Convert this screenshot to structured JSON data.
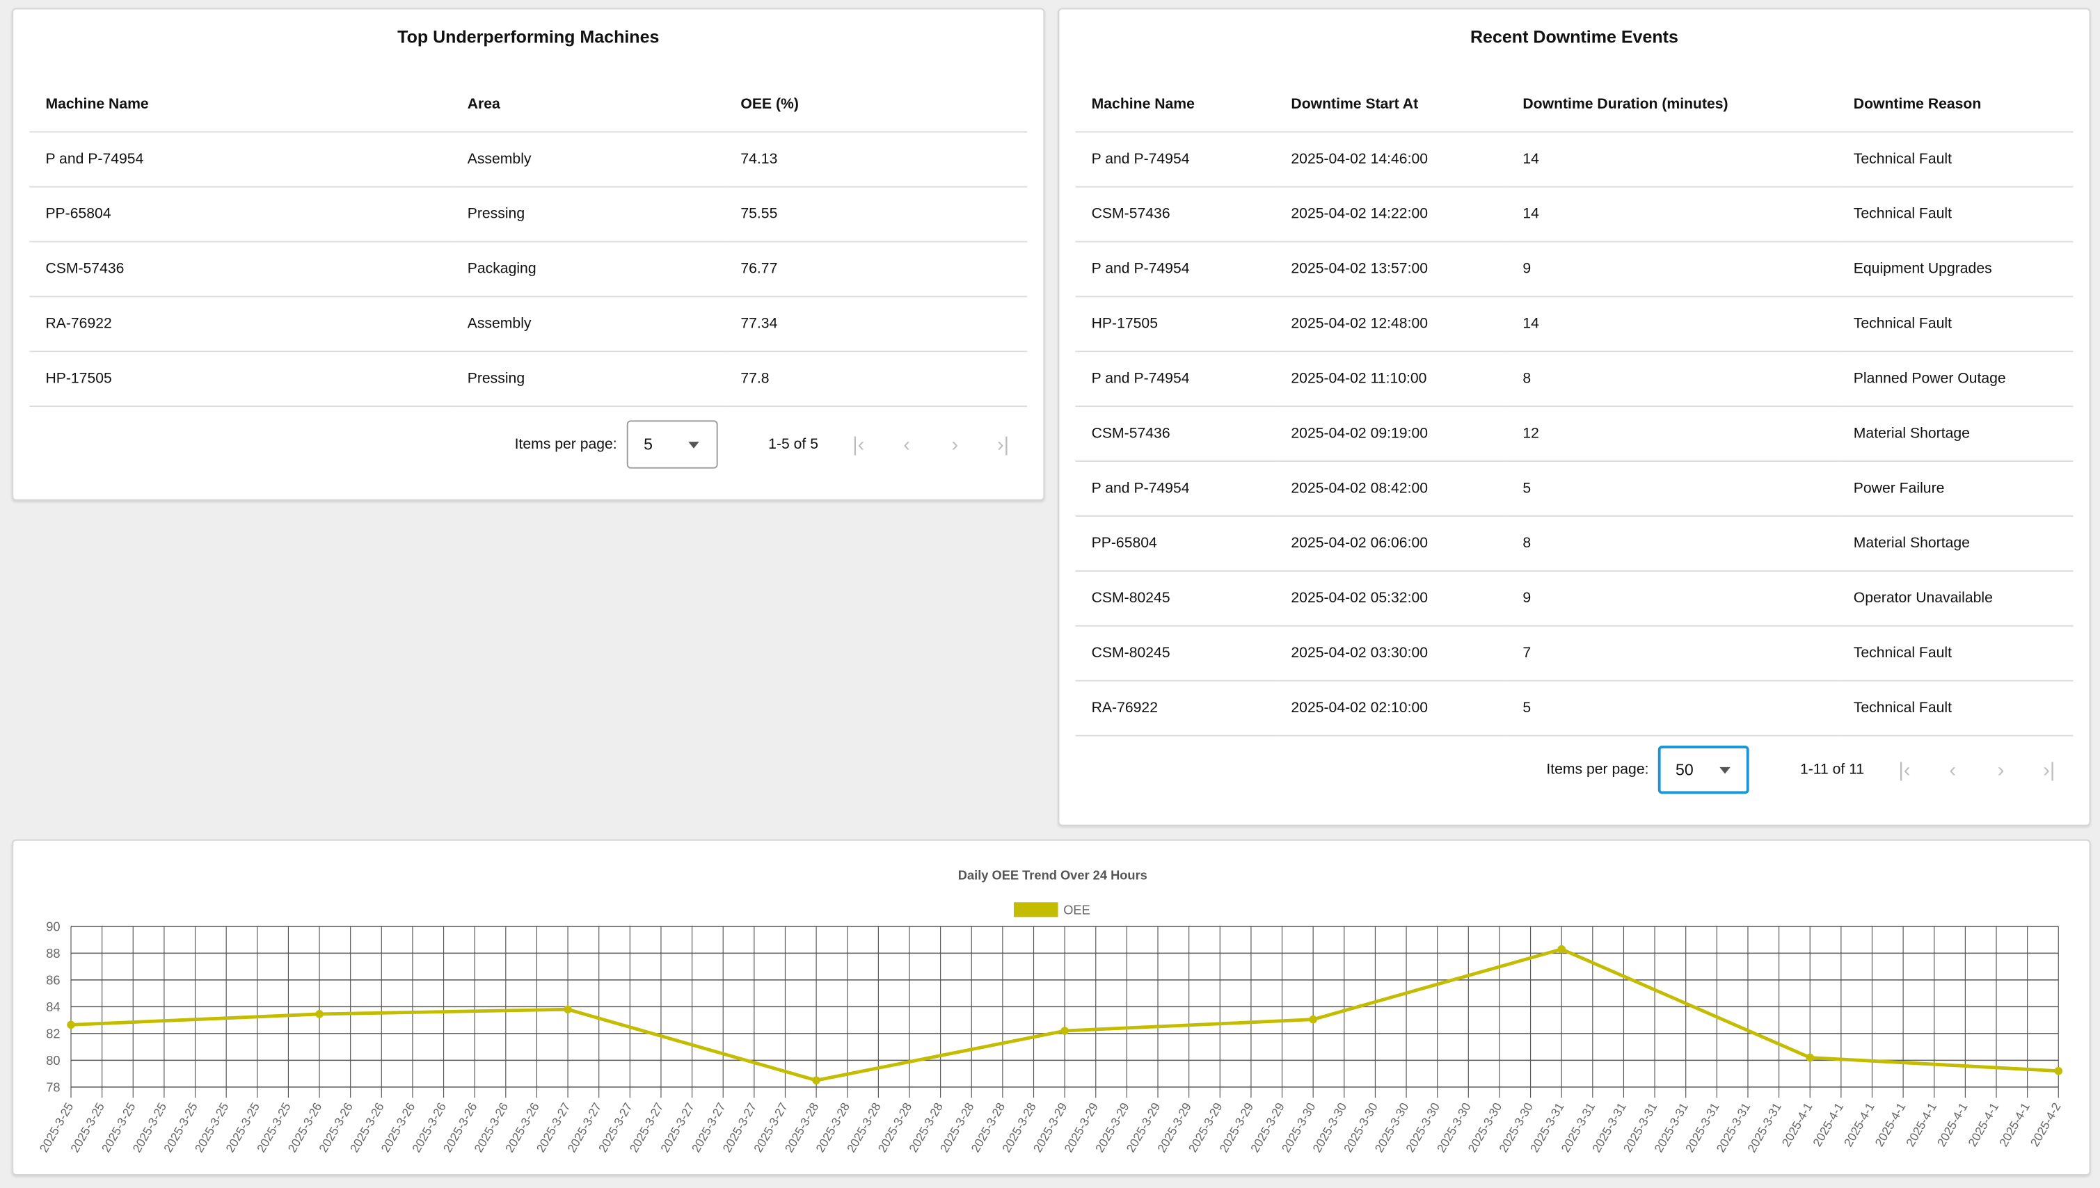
{
  "underperforming": {
    "title": "Top Underperforming Machines",
    "columns": [
      "Machine Name",
      "Area",
      "OEE (%)"
    ],
    "rows": [
      [
        "P and P-74954",
        "Assembly",
        "74.13"
      ],
      [
        "PP-65804",
        "Pressing",
        "75.55"
      ],
      [
        "CSM-57436",
        "Packaging",
        "76.77"
      ],
      [
        "RA-76922",
        "Assembly",
        "77.34"
      ],
      [
        "HP-17505",
        "Pressing",
        "77.8"
      ]
    ],
    "pagination": {
      "items_per_page_label": "Items per page:",
      "items_per_page": "5",
      "range": "1-5 of 5"
    }
  },
  "downtime": {
    "title": "Recent Downtime Events",
    "columns": [
      "Machine Name",
      "Downtime Start At",
      "Downtime Duration (minutes)",
      "Downtime Reason"
    ],
    "rows": [
      [
        "P and P-74954",
        "2025-04-02 14:46:00",
        "14",
        "Technical Fault"
      ],
      [
        "CSM-57436",
        "2025-04-02 14:22:00",
        "14",
        "Technical Fault"
      ],
      [
        "P and P-74954",
        "2025-04-02 13:57:00",
        "9",
        "Equipment Upgrades"
      ],
      [
        "HP-17505",
        "2025-04-02 12:48:00",
        "14",
        "Technical Fault"
      ],
      [
        "P and P-74954",
        "2025-04-02 11:10:00",
        "8",
        "Planned Power Outage"
      ],
      [
        "CSM-57436",
        "2025-04-02 09:19:00",
        "12",
        "Material Shortage"
      ],
      [
        "P and P-74954",
        "2025-04-02 08:42:00",
        "5",
        "Power Failure"
      ],
      [
        "PP-65804",
        "2025-04-02 06:06:00",
        "8",
        "Material Shortage"
      ],
      [
        "CSM-80245",
        "2025-04-02 05:32:00",
        "9",
        "Operator Unavailable"
      ],
      [
        "CSM-80245",
        "2025-04-02 03:30:00",
        "7",
        "Technical Fault"
      ],
      [
        "RA-76922",
        "2025-04-02 02:10:00",
        "5",
        "Technical Fault"
      ]
    ],
    "pagination": {
      "items_per_page_label": "Items per page:",
      "items_per_page": "50",
      "range": "1-11 of 11"
    }
  },
  "pager_icons": [
    "first-page-icon",
    "previous-page-icon",
    "next-page-icon",
    "last-page-icon"
  ],
  "chart_data": {
    "type": "line",
    "title": "Daily OEE Trend Over 24 Hours",
    "legend": "top",
    "grid": true,
    "color": "#c3bc00",
    "ylim": [
      78,
      90
    ],
    "yticks": [
      78,
      80,
      82,
      84,
      86,
      88,
      90
    ],
    "x": [
      "2025-3-25",
      "2025-3-25",
      "2025-3-25",
      "2025-3-25",
      "2025-3-25",
      "2025-3-25",
      "2025-3-25",
      "2025-3-25",
      "2025-3-26",
      "2025-3-26",
      "2025-3-26",
      "2025-3-26",
      "2025-3-26",
      "2025-3-26",
      "2025-3-26",
      "2025-3-26",
      "2025-3-27",
      "2025-3-27",
      "2025-3-27",
      "2025-3-27",
      "2025-3-27",
      "2025-3-27",
      "2025-3-27",
      "2025-3-27",
      "2025-3-28",
      "2025-3-28",
      "2025-3-28",
      "2025-3-28",
      "2025-3-28",
      "2025-3-28",
      "2025-3-28",
      "2025-3-28",
      "2025-3-29",
      "2025-3-29",
      "2025-3-29",
      "2025-3-29",
      "2025-3-29",
      "2025-3-29",
      "2025-3-29",
      "2025-3-29",
      "2025-3-30",
      "2025-3-30",
      "2025-3-30",
      "2025-3-30",
      "2025-3-30",
      "2025-3-30",
      "2025-3-30",
      "2025-3-30",
      "2025-3-31",
      "2025-3-31",
      "2025-3-31",
      "2025-3-31",
      "2025-3-31",
      "2025-3-31",
      "2025-3-31",
      "2025-3-31",
      "2025-4-1",
      "2025-4-1",
      "2025-4-1",
      "2025-4-1",
      "2025-4-1",
      "2025-4-1",
      "2025-4-1",
      "2025-4-1",
      "2025-4-2"
    ],
    "series": [
      {
        "name": "OEE",
        "points": [
          {
            "index": 0,
            "x": "2025-3-25",
            "y": 82.65
          },
          {
            "index": 8,
            "x": "2025-3-26",
            "y": 83.45
          },
          {
            "index": 16,
            "x": "2025-3-27",
            "y": 83.8
          },
          {
            "index": 24,
            "x": "2025-3-28",
            "y": 78.5
          },
          {
            "index": 32,
            "x": "2025-3-29",
            "y": 82.2
          },
          {
            "index": 40,
            "x": "2025-3-30",
            "y": 83.05
          },
          {
            "index": 48,
            "x": "2025-3-31",
            "y": 88.3
          },
          {
            "index": 56,
            "x": "2025-4-1",
            "y": 80.2
          },
          {
            "index": 64,
            "x": "2025-4-2",
            "y": 79.2
          }
        ]
      }
    ]
  }
}
